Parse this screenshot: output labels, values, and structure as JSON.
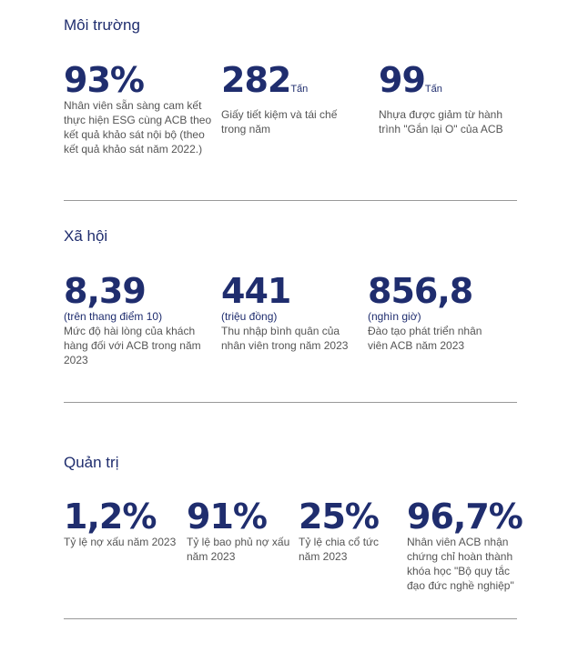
{
  "sections": [
    {
      "title": "Môi trường",
      "stats": [
        {
          "value": "93%",
          "unit": "",
          "sub": "",
          "desc": "Nhân viên sẵn sàng cam kết thực hiện ESG cùng ACB theo kết quả khảo sát nội bộ (theo kết quả khảo sát năm 2022.)"
        },
        {
          "value": "282",
          "unit": "Tấn",
          "sub": "",
          "desc": "Giấy tiết kiệm và tái chế trong năm"
        },
        {
          "value": "99",
          "unit": "Tấn",
          "sub": "",
          "desc": "Nhựa được giảm từ hành trình \"Gắn lại O\" của ACB"
        }
      ]
    },
    {
      "title": "Xã hội",
      "stats": [
        {
          "value": "8,39",
          "unit": "",
          "sub": "(trên thang điểm 10)",
          "desc": "Mức độ hài lòng của khách hàng đối với ACB trong năm 2023"
        },
        {
          "value": "441",
          "unit": "",
          "sub": "(triệu đồng)",
          "desc": "Thu nhập bình quân của nhân viên trong năm 2023"
        },
        {
          "value": "856,8",
          "unit": "",
          "sub": "(nghìn giờ)",
          "desc": "Đào tạo phát triển nhân viên ACB năm 2023"
        }
      ]
    },
    {
      "title": "Quản trị",
      "stats": [
        {
          "value": "1,2%",
          "unit": "",
          "sub": "",
          "desc": "Tỷ lệ nợ xấu năm 2023"
        },
        {
          "value": "91%",
          "unit": "",
          "sub": "",
          "desc": "Tỷ lệ bao phủ nợ xấu năm 2023"
        },
        {
          "value": "25%",
          "unit": "",
          "sub": "",
          "desc": "Tỷ lệ chia cổ tức năm 2023"
        },
        {
          "value": "96,7%",
          "unit": "",
          "sub": "",
          "desc": "Nhân viên ACB nhận chứng chỉ hoàn thành khóa học \"Bộ quy tắc đạo đức nghề nghiệp\""
        }
      ]
    }
  ],
  "colors": {
    "accent": "#1f2d6e",
    "text": "#555555",
    "rule": "#999999"
  }
}
